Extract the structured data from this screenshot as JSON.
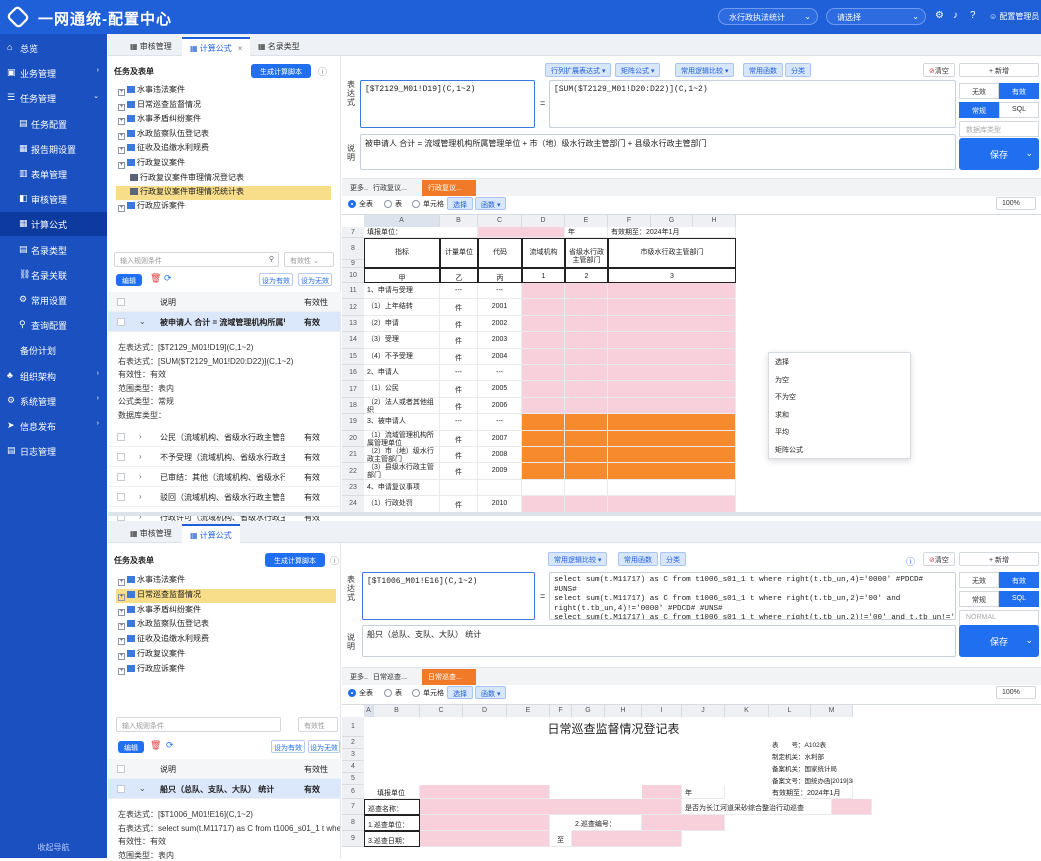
{
  "app": {
    "title": "一网通统-配置中心",
    "select1": "水行政执法统计",
    "select2": "请选择",
    "user": "配置管理员"
  },
  "sidebar": {
    "items": [
      {
        "label": "总览",
        "icon": "home-icon"
      },
      {
        "label": "业务管理",
        "icon": "briefcase-icon",
        "caret": "›"
      },
      {
        "label": "任务管理",
        "icon": "tasks-icon",
        "caret": "⌄"
      },
      {
        "label": "任务配置",
        "icon": "task-config-icon"
      },
      {
        "label": "报告期设置",
        "icon": "calendar-icon"
      },
      {
        "label": "表单管理",
        "icon": "form-icon"
      },
      {
        "label": "审核管理",
        "icon": "audit-icon"
      },
      {
        "label": "计算公式",
        "icon": "formula-icon"
      },
      {
        "label": "名录类型",
        "icon": "directory-icon"
      },
      {
        "label": "名录关联",
        "icon": "link-icon"
      },
      {
        "label": "常用设置",
        "icon": "settings-icon"
      },
      {
        "label": "查询配置",
        "icon": "query-icon"
      },
      {
        "label": "备份计划",
        "icon": ""
      },
      {
        "label": "组织架构",
        "icon": "org-icon",
        "caret": "›"
      },
      {
        "label": "系统管理",
        "icon": "system-icon",
        "caret": "›"
      },
      {
        "label": "信息发布",
        "icon": "publish-icon",
        "caret": "›"
      },
      {
        "label": "日志管理",
        "icon": "log-icon"
      }
    ],
    "collapse": "收起导航"
  },
  "top": {
    "tabs": [
      "审核管理",
      "计算公式",
      "名录类型"
    ],
    "left": {
      "header": "任务及表单",
      "gen_btn": "生成计算脚本",
      "tree": [
        "水事违法案件",
        "日常巡查监督情况",
        "水事矛盾纠纷案件",
        "水政监察队伍登记表",
        "征收及追缴水利规费",
        "行政复议案件",
        "行政复议案件审理情况登记表",
        "行政复议案件审理情况统计表",
        "行政应诉案件"
      ],
      "search_ph": "输入规则条件",
      "valid_ph": "有效性",
      "edit": "编辑",
      "set_valid": "设为有效",
      "set_invalid": "设为无效",
      "col_desc": "说明",
      "col_valid": "有效性",
      "row_main": "被申请人 合计 = 流域管理机构所属管理单位 + 市（地）级水行政主管部门 + 县级水行政主管部门",
      "row_main_valid": "有效",
      "details": [
        "左表达式：[$T2129_M01!D19](C,1~2)",
        "右表达式：[SUM($T2129_M01!D20:D22)](C,1~2)",
        "有效性：有效",
        "范围类型：表内",
        "公式类型：常规",
        "数据库类型："
      ],
      "rows": [
        {
          "t": "公民（流域机构、省级水行政主管部门...",
          "v": "有效"
        },
        {
          "t": "不予受理（流域机构、省级水行政主管...",
          "v": "有效"
        },
        {
          "t": "已审结：其他（流域机构、省级水行政...",
          "v": "有效"
        },
        {
          "t": "驳回（流域机构、省级水行政主管部门...",
          "v": "有效"
        },
        {
          "t": "行政许可（流域机构、省级水行政主管...",
          "v": "有效"
        }
      ]
    },
    "toolbar": [
      "行列扩展表达式 ▾",
      "矩阵公式 ▾",
      "常用逻辑比较 ▾",
      "常用函数",
      "分类"
    ],
    "clear": "清空",
    "add": "+ 新增",
    "expr_label": "表达式",
    "left_expr": "[$T2129_M01!D19](C,1~2)",
    "eq": "=",
    "right_expr": "[SUM($T2129_M01!D20:D22)](C,1~2)",
    "desc_label": "说明",
    "desc": "被申请人 合计 = 流域管理机构所属管理单位 + 市（地）级水行政主管部门 + 县级水行政主管部门",
    "opts": [
      "无效",
      "有效",
      "常规",
      "SQL"
    ],
    "db_ph": "数据库类型",
    "save": "保存",
    "sheettabs": [
      "更多..",
      "行政复议...",
      "行政复议..."
    ],
    "radios": [
      "全表",
      "表",
      "单元格"
    ],
    "choose": "选择",
    "func": "函数 ▾",
    "zoom": "100%",
    "cols": [
      "A",
      "B",
      "C",
      "D",
      "E",
      "F",
      "G",
      "H"
    ],
    "context": [
      "选择",
      "为空",
      "不为空",
      "求和",
      "平均",
      "矩阵公式"
    ]
  },
  "sheet1": {
    "r7": [
      "填报单位：",
      "年",
      "有效期至：2024年1月"
    ],
    "hdr": [
      "指标",
      "计量单位",
      "代码",
      "流域机构",
      "省级水行政主管部门",
      "市级水行政主管部门"
    ],
    "r10": [
      "甲",
      "乙",
      "丙",
      "1",
      "2",
      "3"
    ],
    "rows": [
      [
        "11",
        "1、申请与受理",
        "---",
        "---"
      ],
      [
        "12",
        "（1）上年结转",
        "件",
        "2001"
      ],
      [
        "13",
        "（2）申请",
        "件",
        "2002"
      ],
      [
        "14",
        "（3）受理",
        "件",
        "2003"
      ],
      [
        "15",
        "（4）不予受理",
        "件",
        "2004"
      ],
      [
        "16",
        "2、申请人",
        "---",
        "---"
      ],
      [
        "17",
        "（1）公民",
        "件",
        "2005"
      ],
      [
        "18",
        "（2）法人或者其他组织",
        "件",
        "2006"
      ],
      [
        "19",
        "3、被申请人",
        "---",
        "---"
      ],
      [
        "20",
        "（1）流域管理机构所属管理单位",
        "件",
        "2007"
      ],
      [
        "21",
        "（2）市（地）级水行政主管部门",
        "件",
        "2008"
      ],
      [
        "22",
        "（3）县级水行政主管部门",
        "件",
        "2009"
      ],
      [
        "23",
        "4、申请复议事项",
        "",
        ""
      ],
      [
        "24",
        "（1）行政处罚",
        "件",
        "2010"
      ]
    ],
    "rownums": [
      "7",
      "8",
      "9",
      "10"
    ]
  },
  "bottom": {
    "tabs": [
      "审核管理",
      "计算公式"
    ],
    "left": {
      "header": "任务及表单",
      "gen_btn": "生成计算脚本",
      "tree": [
        "水事违法案件",
        "日常巡查监督情况",
        "水事矛盾纠纷案件",
        "水政监察队伍登记表",
        "征收及追缴水利规费",
        "行政复议案件",
        "行政应诉案件"
      ],
      "search_ph": "输入规则条件",
      "valid_ph": "有效性",
      "edit": "编辑",
      "set_valid": "设为有效",
      "set_invalid": "设为无效",
      "col_desc": "说明",
      "col_valid": "有效性",
      "row_main": "船只（总队、支队、大队） 统计",
      "row_main_valid": "有效",
      "details": [
        "左表达式：[$T1006_M01!E16](C,1~2)",
        "右表达式：select sum(t.M11717) as C from t1006_s01_1 t where",
        "有效性：有效",
        "范围类型：表内"
      ]
    },
    "toolbar": [
      "常用逻辑比较 ▾",
      "常用函数",
      "分类"
    ],
    "clear": "清空",
    "add": "+ 新增",
    "expr_label": "表达式",
    "left_expr": "[$T1006_M01!E16](C,1~2)",
    "eq": "=",
    "right_expr": "select sum(t.M11717) as C from t1006_s01_1 t where right(t.tb_un,4)='0000' #PDCD#\n#UNS#\nselect sum(t.M11717) as C from t1006_s01_1 t where right(t.tb_un,2)='00' and\nright(t.tb_un,4)!='0000' #PDCD# #UNS#\nselect sum(t.M11717) as C from t1006_s01_1 t where right(t.tb_un,2)!='00' and t.tb_un!='0'",
    "desc_label": "说明",
    "desc": "船只（总队、支队、大队） 统计",
    "opts": [
      "无效",
      "有效",
      "常规",
      "SQL"
    ],
    "db_ph": "NORMAL",
    "save": "保存",
    "sheettabs": [
      "更多..",
      "日常巡查...",
      "日常巡查..."
    ],
    "radios": [
      "全表",
      "表",
      "单元格"
    ],
    "choose": "选择",
    "func": "函数 ▾",
    "zoom": "100%",
    "cols": [
      "A",
      "B",
      "C",
      "D",
      "E",
      "F",
      "G",
      "H",
      "I",
      "J",
      "K",
      "L",
      "M"
    ],
    "sheet_title": "日常巡查监督情况登记表",
    "meta": [
      "表　　号：A102表",
      "制定机关：水利部",
      "备案机关：国家统计局",
      "备案文号：国统办函[2019]38号"
    ],
    "r6": [
      "填报单位",
      "年",
      "有效期至：2024年1月"
    ],
    "r7": [
      "巡查名称：",
      "是否为长江河道采砂综合整治行动巡查"
    ],
    "r8": [
      "1.巡查单位：",
      "2.巡查编号："
    ],
    "r9": [
      "3.巡查日期：",
      "至"
    ],
    "rownums": [
      "1",
      "2",
      "3",
      "4",
      "5",
      "6",
      "7",
      "8",
      "9"
    ]
  }
}
